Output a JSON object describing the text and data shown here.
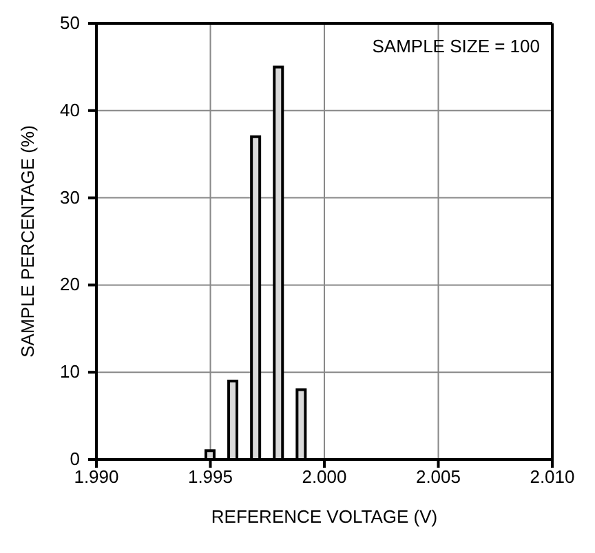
{
  "chart_data": {
    "type": "bar",
    "xlabel": "REFERENCE VOLTAGE (V)",
    "ylabel": "SAMPLE PERCENTAGE (%)",
    "x": [
      1.995,
      1.996,
      1.997,
      1.998,
      1.999
    ],
    "values": [
      1,
      9,
      37,
      45,
      8
    ],
    "color": "#d9d9d9",
    "xlim": [
      1.99,
      2.01
    ],
    "xticks": [
      {
        "value": 1.99,
        "label": "1.990"
      },
      {
        "value": 1.995,
        "label": "1.995"
      },
      {
        "value": 2.0,
        "label": "2.000"
      },
      {
        "value": 2.005,
        "label": "2.005"
      },
      {
        "value": 2.01,
        "label": "2.010"
      }
    ],
    "ylim": [
      0,
      50
    ],
    "yticks": [
      0,
      10,
      20,
      30,
      40,
      50
    ],
    "grid": true,
    "annotations": [
      "SAMPLE SIZE = 100"
    ]
  }
}
